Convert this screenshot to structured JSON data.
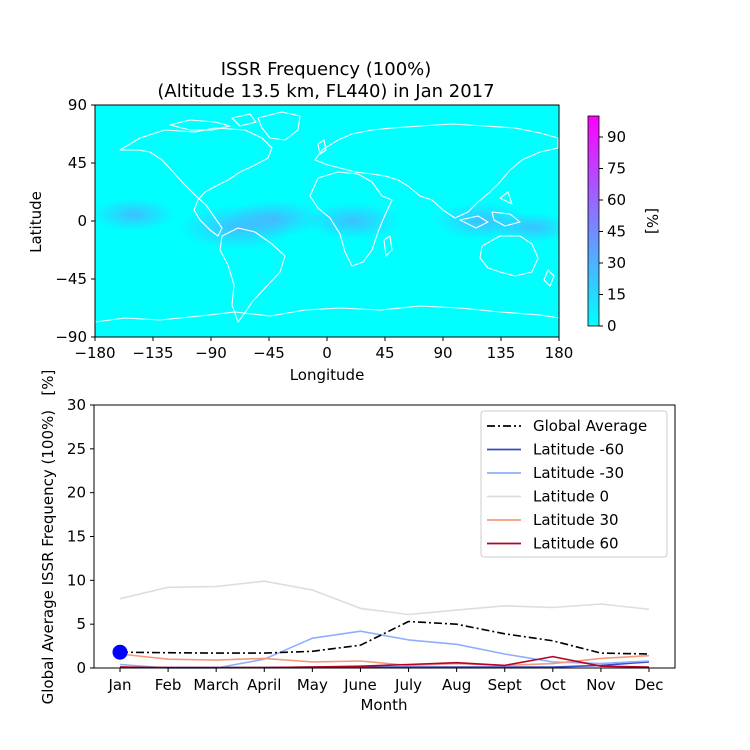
{
  "chart_data": [
    {
      "type": "heatmap",
      "title_line1": "ISSR Frequency (100%)",
      "title_line2": "(Altitude 13.5 km, FL440) in Jan 2017",
      "xlabel": "Longitude",
      "ylabel": "Latitude",
      "xlim": [
        -180,
        180
      ],
      "ylim": [
        -90,
        90
      ],
      "x_ticks": [
        -180,
        -135,
        -90,
        -45,
        0,
        45,
        90,
        135,
        180
      ],
      "y_ticks": [
        -90,
        -45,
        0,
        45,
        90
      ],
      "x_tick_labels": [
        "−180",
        "−135",
        "−90",
        "−45",
        "0",
        "45",
        "90",
        "135",
        "180"
      ],
      "y_tick_labels": [
        "−90",
        "−45",
        "0",
        "45",
        "90"
      ],
      "background_color": "#00ffff",
      "coastline_color": "#ffffff",
      "high_frequency_regions": [
        {
          "lon": -70,
          "lat": -5,
          "value": 20
        },
        {
          "lon": -40,
          "lat": 2,
          "value": 15
        },
        {
          "lon": 20,
          "lat": 0,
          "value": 15
        },
        {
          "lon": 120,
          "lat": 0,
          "value": 15
        },
        {
          "lon": -150,
          "lat": 5,
          "value": 12
        },
        {
          "lon": 160,
          "lat": -5,
          "value": 10
        }
      ],
      "colorbar": {
        "label": "[%]",
        "range": [
          0,
          100
        ],
        "ticks": [
          0,
          15,
          30,
          45,
          60,
          75,
          90
        ],
        "colors": [
          "#00ffff",
          "#ff00ff"
        ]
      }
    },
    {
      "type": "line",
      "xlabel": "Month",
      "ylabel": "Global Average ISSR Frequency (100%)   [%]",
      "categories": [
        "Jan",
        "Feb",
        "March",
        "April",
        "May",
        "June",
        "July",
        "Aug",
        "Sept",
        "Oct",
        "Nov",
        "Dec"
      ],
      "ylim": [
        0,
        30
      ],
      "y_ticks": [
        0,
        5,
        10,
        15,
        20,
        25,
        30
      ],
      "legend_position": "top-right",
      "marker": {
        "index": 0,
        "value": 1.8,
        "color": "#0000ff"
      },
      "series": [
        {
          "name": "Global Average",
          "color": "#000000",
          "dash": "8,3,2,3",
          "values": [
            1.8,
            1.75,
            1.7,
            1.7,
            1.9,
            2.6,
            5.3,
            5.0,
            3.9,
            3.1,
            1.7,
            1.6
          ]
        },
        {
          "name": "Latitude -60",
          "color": "#3b4cc0",
          "dash": "",
          "values": [
            0.1,
            0.05,
            0.05,
            0.05,
            0.1,
            0.1,
            0.1,
            0.1,
            0.1,
            0.1,
            0.3,
            0.7
          ]
        },
        {
          "name": "Latitude -30",
          "color": "#8db0fe",
          "dash": "",
          "values": [
            0.4,
            0.0,
            0.0,
            1.0,
            3.4,
            4.2,
            3.2,
            2.7,
            1.6,
            0.7,
            0.5,
            0.8
          ]
        },
        {
          "name": "Latitude 0",
          "color": "#dddddd",
          "dash": "",
          "values": [
            7.9,
            9.2,
            9.3,
            9.9,
            8.9,
            6.8,
            6.1,
            6.6,
            7.1,
            6.9,
            7.3,
            6.7
          ]
        },
        {
          "name": "Latitude 30",
          "color": "#f49a7b",
          "dash": "",
          "values": [
            1.6,
            1.0,
            0.9,
            1.1,
            0.7,
            0.8,
            0.3,
            0.5,
            0.3,
            0.5,
            1.1,
            1.4
          ]
        },
        {
          "name": "Latitude 60",
          "color": "#b40426",
          "dash": "",
          "values": [
            0.1,
            0.05,
            0.05,
            0.05,
            0.1,
            0.2,
            0.4,
            0.6,
            0.3,
            1.3,
            0.2,
            0.1
          ]
        }
      ]
    }
  ]
}
